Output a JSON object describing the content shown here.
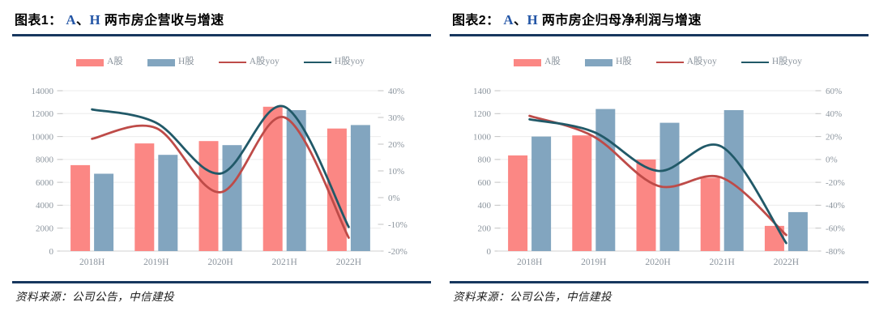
{
  "colors": {
    "accent": "#2456A6",
    "rule": "#17375E",
    "title_text": "#000000",
    "source_text": "#1A1A1A",
    "a_bar": "#FB8784",
    "h_bar": "#82A5BF",
    "a_line": "#BE4B48",
    "h_line": "#215968",
    "grid": "#ECECEC",
    "axis_line": "#D9D9D9",
    "tick": "#C3C3C3",
    "axis_text": "#8C959E"
  },
  "panels": [
    {
      "title_parts": {
        "prefix": "图表1：  ",
        "market_a": "A",
        "sep": "、",
        "market_h": "H",
        "rest": " 两市房企营收与增速"
      },
      "source": "资料来源：公司公告，中信建投"
    },
    {
      "title_parts": {
        "prefix": "图表2：  ",
        "market_a": "A",
        "sep": "、",
        "market_h": "H",
        "rest": " 两市房企归母净利润与增速"
      },
      "source": "资料来源：公司公告，中信建投"
    }
  ],
  "chart_data": [
    {
      "type": "bar+line",
      "title": "图表1：A、H 两市房企营收与增速",
      "categories": [
        "2018H",
        "2019H",
        "2020H",
        "2021H",
        "2022H"
      ],
      "bar_series": [
        {
          "name": "A股",
          "color": "#FB8784",
          "values": [
            7500,
            9400,
            9600,
            12600,
            10700
          ]
        },
        {
          "name": "H股",
          "color": "#82A5BF",
          "values": [
            6750,
            8400,
            9250,
            12300,
            11000
          ]
        }
      ],
      "line_series": [
        {
          "name": "A股yoy",
          "color": "#BE4B48",
          "values_pct": [
            22,
            26,
            2,
            30,
            -15
          ]
        },
        {
          "name": "H股yoy",
          "color": "#215968",
          "values_pct": [
            33,
            28,
            9,
            34,
            -11
          ]
        }
      ],
      "left_axis": {
        "min": 0,
        "max": 14000,
        "labels": [
          "14000",
          "12000",
          "10000",
          "8000",
          "6000",
          "4000",
          "2000",
          "0"
        ]
      },
      "right_axis": {
        "min": -20,
        "max": 40,
        "labels": [
          "40%",
          "30%",
          "20%",
          "10%",
          "0%",
          "-10%",
          "-20%"
        ]
      },
      "legend": [
        {
          "label": "A股",
          "type": "bar",
          "color": "#FB8784"
        },
        {
          "label": "H股",
          "type": "bar",
          "color": "#82A5BF"
        },
        {
          "label": "A股yoy",
          "type": "line",
          "color": "#BE4B48"
        },
        {
          "label": "H股yoy",
          "type": "line",
          "color": "#215968"
        }
      ],
      "grid": true,
      "legend_position": "top"
    },
    {
      "type": "bar+line",
      "title": "图表2：A、H 两市房企归母净利润与增速",
      "categories": [
        "2018H",
        "2019H",
        "2020H",
        "2021H",
        "2022H"
      ],
      "bar_series": [
        {
          "name": "A股",
          "color": "#FB8784",
          "values": [
            835,
            1010,
            800,
            640,
            220
          ]
        },
        {
          "name": "H股",
          "color": "#82A5BF",
          "values": [
            1000,
            1240,
            1120,
            1230,
            340
          ]
        }
      ],
      "line_series": [
        {
          "name": "A股yoy",
          "color": "#BE4B48",
          "values_pct": [
            38,
            20,
            -23,
            -16,
            -66
          ]
        },
        {
          "name": "H股yoy",
          "color": "#215968",
          "values_pct": [
            35,
            24,
            -10,
            11,
            -73
          ]
        }
      ],
      "left_axis": {
        "min": 0,
        "max": 1400,
        "labels": [
          "1400",
          "1200",
          "1000",
          "800",
          "600",
          "400",
          "200",
          "0"
        ]
      },
      "right_axis": {
        "min": -80,
        "max": 60,
        "labels": [
          "60%",
          "40%",
          "20%",
          "0%",
          "-20%",
          "-40%",
          "-60%",
          "-80%"
        ]
      },
      "legend": [
        {
          "label": "A股",
          "type": "bar",
          "color": "#FB8784"
        },
        {
          "label": "H股",
          "type": "bar",
          "color": "#82A5BF"
        },
        {
          "label": "A股yoy",
          "type": "line",
          "color": "#BE4B48"
        },
        {
          "label": "H股yoy",
          "type": "line",
          "color": "#215968"
        }
      ],
      "grid": true,
      "legend_position": "top"
    }
  ]
}
